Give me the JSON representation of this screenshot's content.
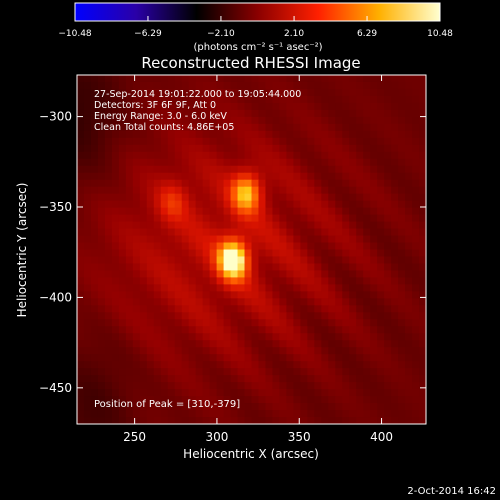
{
  "colorbar": {
    "ticks": [
      "−10.48",
      "−6.29",
      "−2.10",
      "2.10",
      "6.29",
      "10.48"
    ],
    "range": [
      -10.48,
      10.48
    ],
    "unit_label": "(photons cm⁻² s⁻¹ asec⁻²)",
    "colors": [
      "#0000ff",
      "#2a00a8",
      "#000000",
      "#8a0000",
      "#ff2000",
      "#ffb000",
      "#ffffd0"
    ]
  },
  "chart_data": {
    "type": "heatmap",
    "title": "Reconstructed RHESSI Image",
    "xlabel": "Heliocentric X (arcsec)",
    "ylabel": "Heliocentric Y (arcsec)",
    "xlim": [
      215,
      427
    ],
    "ylim": [
      -470,
      -277
    ],
    "x_ticks": [
      250,
      300,
      350,
      400
    ],
    "y_ticks": [
      -300,
      -350,
      -400,
      -450
    ],
    "sources": [
      {
        "x": 310,
        "y": -379,
        "peak": 10.48
      },
      {
        "x": 318,
        "y": -342,
        "peak": 7.8
      },
      {
        "x": 273,
        "y": -347,
        "peak": 4.2
      }
    ],
    "annotations": [
      "27-Sep-2014 19:01:22.000 to 19:05:44.000",
      "Detectors: 3F 6F 9F, Att 0",
      "Energy Range: 3.0 - 6.0 keV",
      "Clean    Total counts: 4.86E+05"
    ],
    "peak_label": "Position of Peak = [310,-379]"
  },
  "footer": {
    "date": "2-Oct-2014 16:42"
  }
}
